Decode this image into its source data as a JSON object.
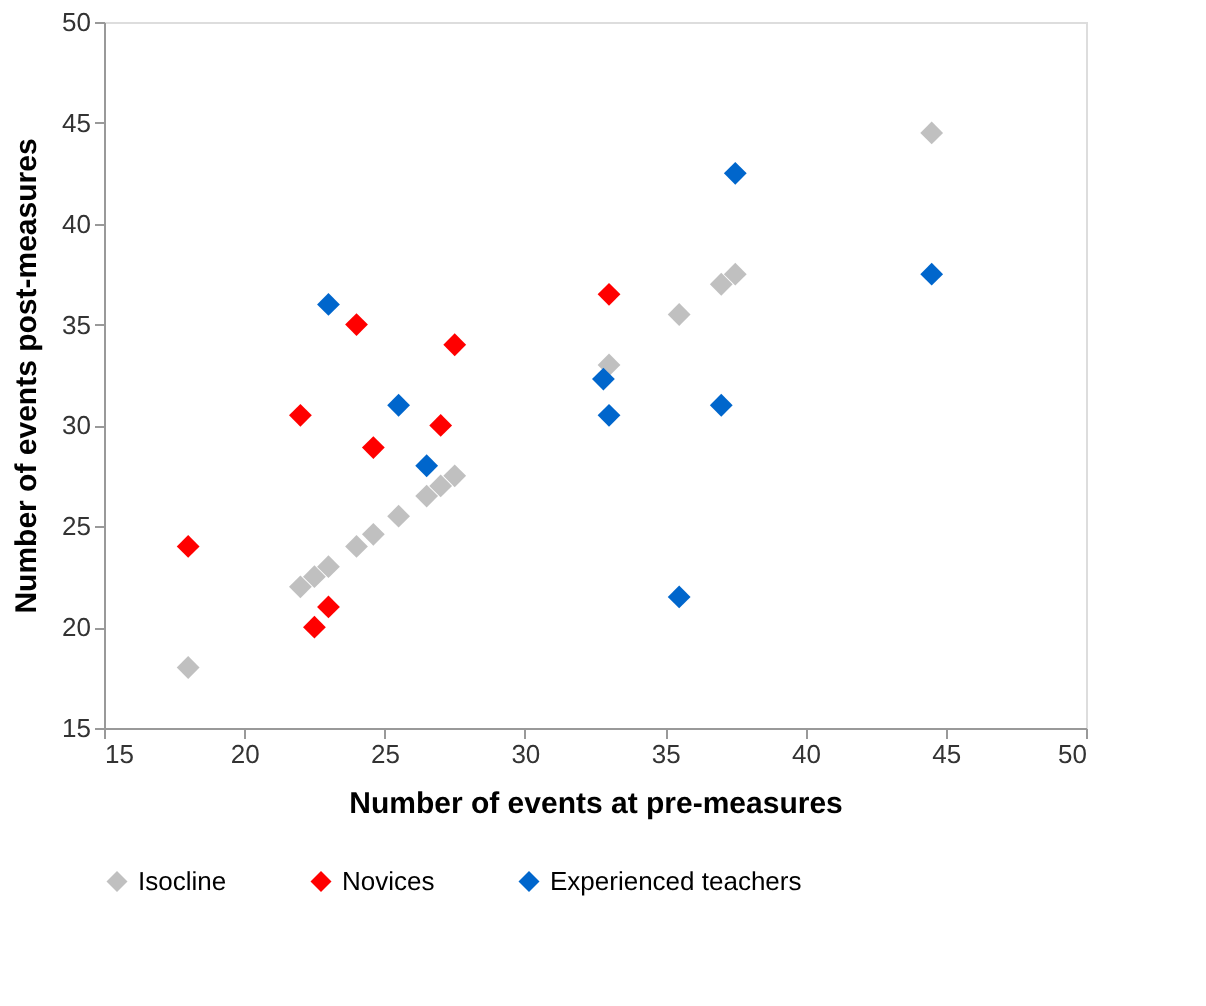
{
  "chart_data": {
    "type": "scatter",
    "xlabel": "Number of events at pre-measures",
    "ylabel": "Number of events post-measures",
    "xlim": [
      15,
      50
    ],
    "ylim": [
      15,
      50
    ],
    "xticks": [
      15,
      20,
      25,
      30,
      35,
      40,
      45,
      50
    ],
    "yticks": [
      15,
      20,
      25,
      30,
      35,
      40,
      45,
      50
    ],
    "grid": false,
    "legend": "bottom",
    "marker": "diamond",
    "series": [
      {
        "name": "Isocline",
        "color": "#c0c0c0",
        "x": [
          18,
          22,
          22.5,
          23,
          24,
          24.6,
          25.5,
          26.5,
          27,
          27.5,
          32.8,
          33,
          35.5,
          37,
          37.5,
          44.5
        ],
        "values": [
          18,
          22,
          22.5,
          23,
          24,
          24.6,
          25.5,
          26.5,
          27,
          27.5,
          null,
          33,
          35.5,
          37,
          37.5,
          44.5
        ]
      },
      {
        "name": "Novices",
        "color": "#ff0000",
        "x": [
          18,
          22,
          22.5,
          23,
          24,
          24.6,
          27,
          27.5,
          33
        ],
        "values": [
          24,
          30.5,
          20,
          21,
          35,
          28.9,
          30,
          34,
          36.5
        ]
      },
      {
        "name": "Experienced teachers",
        "color": "#0066cc",
        "x": [
          23,
          25.5,
          26.5,
          32.8,
          33,
          35.5,
          37,
          37.5,
          44.5
        ],
        "values": [
          36,
          31,
          28,
          32.3,
          30.5,
          21.5,
          31,
          42.5,
          37.5
        ]
      }
    ]
  }
}
